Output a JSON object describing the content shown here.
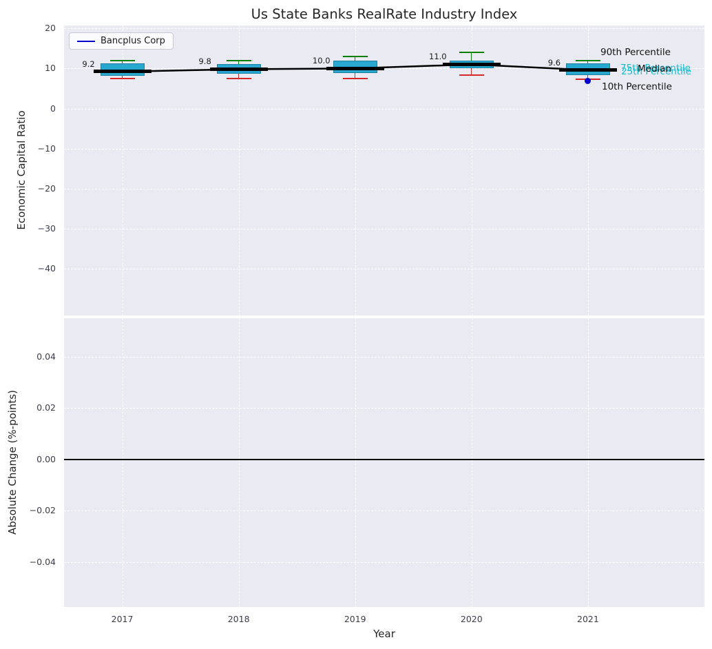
{
  "title": "Us State Banks RealRate Industry Index",
  "legend": {
    "label": "Bancplus Corp"
  },
  "annotations": {
    "p90": "90th Percentile",
    "p75": "75th Percentile",
    "median": "Median",
    "p25": "25th Percentile",
    "p10": "10th Percentile"
  },
  "colors": {
    "plot_background": "#eaeaf2",
    "grid": "#ffffff",
    "box_fill": "#29a8cf",
    "box_edge": "#1d7fa0",
    "p90_cap": "#008000",
    "p10_cap": "#d62728",
    "median_line": "#000000",
    "company": "#0000cd",
    "percentile_label_cyan": "#17becf",
    "text": "#262626",
    "tick_text": "#3b3b4c"
  },
  "chart_data": {
    "type": "boxplot",
    "title": "Us State Banks RealRate Industry Index",
    "x_label": "Year",
    "xlim": [
      2016.5,
      2022.0
    ],
    "x_ticks": [
      {
        "v": 2017,
        "label": "2017"
      },
      {
        "v": 2018,
        "label": "2018"
      },
      {
        "v": 2019,
        "label": "2019"
      },
      {
        "v": 2020,
        "label": "2020"
      },
      {
        "v": 2021,
        "label": "2021"
      }
    ],
    "panels": [
      {
        "ylabel": "Economic Capital Ratio",
        "ylim": [
          -51.6,
          20.7
        ],
        "grid": true,
        "yticks": [
          {
            "v": 20,
            "label": "20"
          },
          {
            "v": 10,
            "label": "10"
          },
          {
            "v": 0,
            "label": "0"
          },
          {
            "v": -10,
            "label": "−10"
          },
          {
            "v": -20,
            "label": "−20"
          },
          {
            "v": -30,
            "label": "−30"
          },
          {
            "v": -40,
            "label": "−40"
          }
        ],
        "boxes": [
          {
            "year": 2017,
            "p10": 7.4,
            "p25": 8.2,
            "median": 9.2,
            "p75": 11.2,
            "p90": 12.0,
            "median_label": "9.2"
          },
          {
            "year": 2018,
            "p10": 7.5,
            "p25": 8.6,
            "median": 9.8,
            "p75": 11.0,
            "p90": 12.0,
            "median_label": "9.8"
          },
          {
            "year": 2019,
            "p10": 7.5,
            "p25": 8.8,
            "median": 10.0,
            "p75": 12.0,
            "p90": 13.0,
            "median_label": "10.0"
          },
          {
            "year": 2020,
            "p10": 8.3,
            "p25": 10.0,
            "median": 11.0,
            "p75": 12.0,
            "p90": 14.0,
            "median_label": "11.0"
          },
          {
            "year": 2021,
            "p10": 7.3,
            "p25": 8.3,
            "median": 9.6,
            "p75": 11.3,
            "p90": 12.0,
            "median_label": "9.6"
          }
        ],
        "company_series": {
          "name": "Bancplus Corp",
          "points": [
            {
              "x": 2021,
              "y": 6.9
            }
          ]
        }
      },
      {
        "ylabel": "Absolute Change (%-points)",
        "ylim": [
          -0.0575,
          0.055
        ],
        "grid": true,
        "yticks": [
          {
            "v": 0.04,
            "label": "0.04"
          },
          {
            "v": 0.02,
            "label": "0.02"
          },
          {
            "v": 0.0,
            "label": "0.00"
          },
          {
            "v": -0.02,
            "label": "−0.02"
          },
          {
            "v": -0.04,
            "label": "−0.04"
          }
        ],
        "zero_line": 0.0
      }
    ]
  }
}
